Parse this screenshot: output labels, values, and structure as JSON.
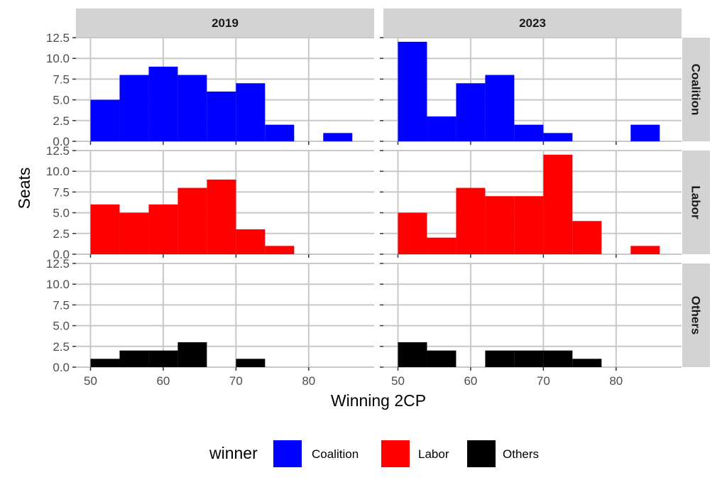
{
  "chart_data": {
    "type": "bar",
    "subtype": "faceted-histogram",
    "xlabel": "Winning 2CP",
    "ylabel": "Seats",
    "xlim": [
      48,
      89
    ],
    "ylim": [
      0,
      12.5
    ],
    "x_ticks": [
      "50",
      "60",
      "70",
      "80"
    ],
    "y_ticks": [
      "0.0",
      "2.5",
      "5.0",
      "7.5",
      "10.0",
      "12.5"
    ],
    "bin_width": 4,
    "bin_starts": [
      50,
      54,
      58,
      62,
      66,
      70,
      74,
      78,
      82
    ],
    "column_facets": [
      "2019",
      "2023"
    ],
    "row_facets": [
      "Coalition",
      "Labor",
      "Others"
    ],
    "colors": {
      "Coalition": "#0000ff",
      "Labor": "#ff0000",
      "Others": "#000000"
    },
    "panel_background": "#ffffff",
    "grid": true,
    "grid_color": "#c8c8c8",
    "strip_background": "#d3d3d3",
    "panels": [
      {
        "year": "2019",
        "winner": "Coalition",
        "values": [
          5,
          8,
          9,
          8,
          6,
          7,
          2,
          0,
          1
        ]
      },
      {
        "year": "2023",
        "winner": "Coalition",
        "values": [
          12,
          3,
          7,
          8,
          2,
          1,
          0,
          0,
          2
        ]
      },
      {
        "year": "2019",
        "winner": "Labor",
        "values": [
          6,
          5,
          6,
          8,
          9,
          3,
          1,
          0,
          0
        ]
      },
      {
        "year": "2023",
        "winner": "Labor",
        "values": [
          5,
          2,
          8,
          7,
          7,
          12,
          4,
          0,
          1
        ]
      },
      {
        "year": "2019",
        "winner": "Others",
        "values": [
          1,
          2,
          2,
          3,
          0,
          1,
          0,
          0,
          0
        ]
      },
      {
        "year": "2023",
        "winner": "Others",
        "values": [
          3,
          2,
          0,
          2,
          2,
          2,
          1,
          0,
          0
        ]
      }
    ],
    "legend": {
      "title": "winner",
      "position": "bottom",
      "entries": [
        "Coalition",
        "Labor",
        "Others"
      ]
    }
  }
}
